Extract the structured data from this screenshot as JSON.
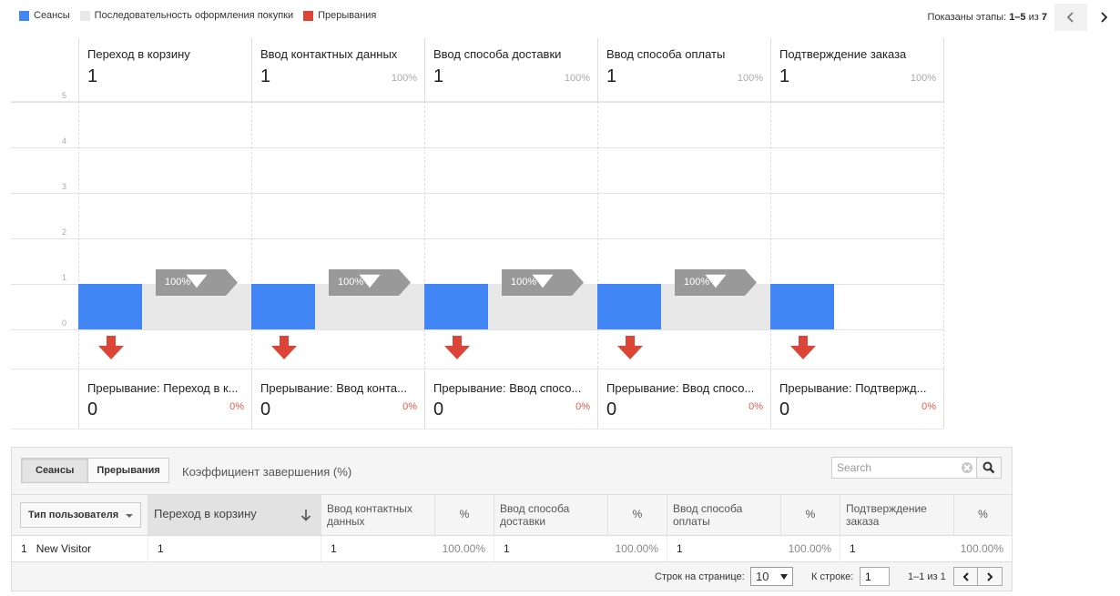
{
  "legend": [
    {
      "label": "Сеансы",
      "color": "#4285f4"
    },
    {
      "label": "Последовательность оформления покупки",
      "color": "#e8e8e8"
    },
    {
      "label": "Прерывания",
      "color": "#db4437"
    }
  ],
  "stage_pager": {
    "label": "Показаны этапы:",
    "range": "1–5",
    "of": "из",
    "total": "7"
  },
  "chart_data": {
    "type": "bar",
    "title": "",
    "xlabel": "",
    "ylabel": "",
    "ylim": [
      0,
      5
    ],
    "yticks": [
      "0",
      "1",
      "2",
      "3",
      "4",
      "5"
    ],
    "categories": [
      "Переход в корзину",
      "Ввод контактных данных",
      "Ввод способа доставки",
      "Ввод способа оплаты",
      "Подтверждение заказа"
    ],
    "series": [
      {
        "name": "Сеансы",
        "values": [
          1,
          1,
          1,
          1,
          1
        ]
      },
      {
        "name": "Прерывания",
        "values": [
          0,
          0,
          0,
          0,
          0
        ]
      }
    ],
    "steps": [
      {
        "title": "Переход в корзину",
        "value": "1",
        "pct": ""
      },
      {
        "title": "Ввод контактных данных",
        "value": "1",
        "pct": "100%"
      },
      {
        "title": "Ввод способа доставки",
        "value": "1",
        "pct": "100%"
      },
      {
        "title": "Ввод способа оплаты",
        "value": "1",
        "pct": "100%"
      },
      {
        "title": "Подтверждение заказа",
        "value": "1",
        "pct": "100%"
      }
    ],
    "conversions": [
      "100%",
      "100%",
      "100%",
      "100%"
    ],
    "dropoffs": [
      {
        "title": "Прерывание: Переход в к...",
        "value": "0",
        "pct": "0%"
      },
      {
        "title": "Прерывание: Ввод конта...",
        "value": "0",
        "pct": "0%"
      },
      {
        "title": "Прерывание: Ввод спосо...",
        "value": "0",
        "pct": "0%"
      },
      {
        "title": "Прерывание: Ввод спосо...",
        "value": "0",
        "pct": "0%"
      },
      {
        "title": "Прерывание: Подтвержд...",
        "value": "0",
        "pct": "0%"
      }
    ]
  },
  "table": {
    "tabs": [
      "Сеансы",
      "Прерывания"
    ],
    "tab_text": "Коэффициент завершения (%)",
    "search_placeholder": "Search",
    "dimension_label": "Тип пользователя",
    "columns": [
      "Переход в корзину",
      "Ввод контактных данных",
      "%",
      "Ввод способа доставки",
      "%",
      "Ввод способа оплаты",
      "%",
      "Подтверждение заказа",
      "%"
    ],
    "rows": [
      {
        "index": "1",
        "name": "New Visitor",
        "cells": [
          "1",
          "1",
          "100.00%",
          "1",
          "100.00%",
          "1",
          "100.00%",
          "1",
          "100.00%"
        ]
      }
    ],
    "footer": {
      "rows_per_page_label": "Строк на странице:",
      "rows_per_page": "10",
      "goto_label": "К строке:",
      "goto_value": "1",
      "range": "1–1 из 1"
    }
  }
}
